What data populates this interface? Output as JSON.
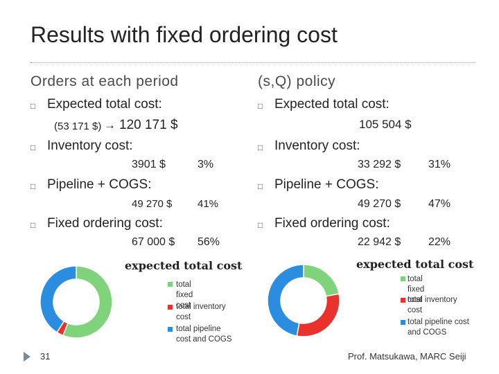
{
  "slide": {
    "title": "Results with fixed ordering cost",
    "page_number": "31",
    "footer": "Prof. Matsukawa, MARC Seiji",
    "bullet_glyph": "□"
  },
  "left": {
    "heading": "Orders at each period",
    "expected_label": "Expected total cost:",
    "expected_prev": "(53 171 $)",
    "expected_value": "120 171 $",
    "inventory_label": "Inventory cost:",
    "inventory_value": "3901 $",
    "inventory_pct": "3%",
    "pipeline_label": "Pipeline + COGS:",
    "pipeline_value": "49 270 $",
    "pipeline_pct": "41%",
    "fixed_label": "Fixed ordering cost:",
    "fixed_value": "67 000 $",
    "fixed_pct": "56%"
  },
  "right": {
    "heading": "(s,Q) policy",
    "expected_label": "Expected total cost:",
    "expected_value": "105 504 $",
    "inventory_label": "Inventory cost:",
    "inventory_value": "33 292 $",
    "inventory_pct": "31%",
    "pipeline_label": "Pipeline + COGS:",
    "pipeline_value": "49 270 $",
    "pipeline_pct": "47%",
    "fixed_label": "Fixed ordering cost:",
    "fixed_value": "22 942 $",
    "fixed_pct": "22%"
  },
  "chart_data": [
    {
      "type": "pie",
      "title": "expected total cost",
      "categories": [
        "total fixed cost",
        "total inventory cost",
        "total pipeline cost and COGS"
      ],
      "values": [
        56,
        3,
        41
      ],
      "colors": [
        "#7fd37a",
        "#e8322b",
        "#2b8de0"
      ],
      "legend_placement": "right"
    },
    {
      "type": "pie",
      "title": "expected total cost",
      "categories": [
        "total fixed cost",
        "total inventory cost",
        "total pipeline cost and COGS"
      ],
      "values": [
        22,
        31,
        47
      ],
      "colors": [
        "#7fd37a",
        "#e8322b",
        "#2b8de0"
      ],
      "legend_placement": "right"
    }
  ],
  "legend_lines": {
    "chart1": [
      "total fixed cost",
      "total inventory\ncost",
      "total pipeline\ncost and COGS"
    ],
    "chart2": [
      "total fixed cost",
      "total inventory\ncost",
      "total pipeline cost\nand COGS"
    ]
  }
}
